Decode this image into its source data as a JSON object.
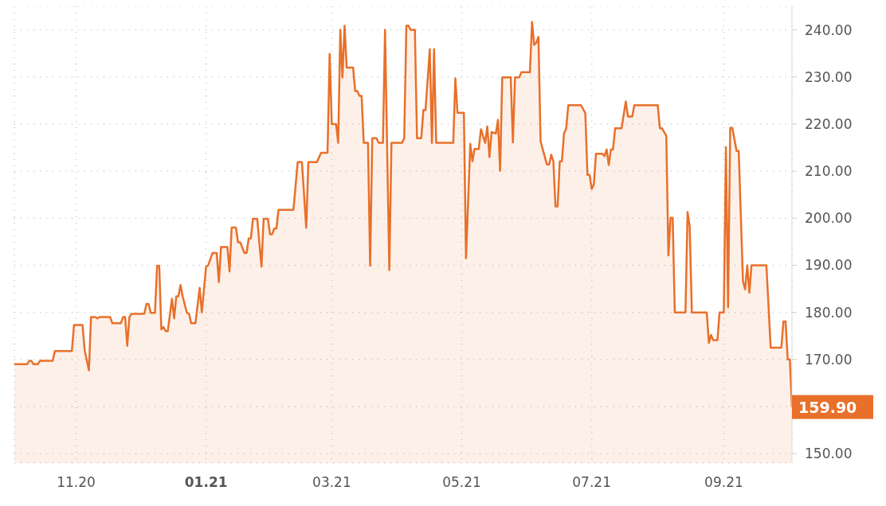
{
  "chart_data": {
    "type": "area",
    "x": [
      "2020-10-03",
      "2020-10-09",
      "2020-10-10",
      "2020-10-11",
      "2020-10-12",
      "2020-10-14",
      "2020-10-15",
      "2020-10-21",
      "2020-10-22",
      "2020-10-30",
      "2020-10-31",
      "2020-11-04",
      "2020-11-05",
      "2020-11-07",
      "2020-11-08",
      "2020-11-10",
      "2020-11-11",
      "2020-11-12",
      "2020-11-17",
      "2020-11-18",
      "2020-11-22",
      "2020-11-23",
      "2020-11-24",
      "2020-11-25",
      "2020-11-26",
      "2020-11-27",
      "2020-12-03",
      "2020-12-04",
      "2020-12-05",
      "2020-12-06",
      "2020-12-08",
      "2020-12-09",
      "2020-12-10",
      "2020-12-11",
      "2020-12-12",
      "2020-12-13",
      "2020-12-14",
      "2020-12-16",
      "2020-12-17",
      "2020-12-18",
      "2020-12-19",
      "2020-12-20",
      "2020-12-21",
      "2020-12-23",
      "2020-12-24",
      "2020-12-25",
      "2020-12-27",
      "2020-12-29",
      "2020-12-30",
      "2021-01-01",
      "2021-01-02",
      "2021-01-04",
      "2021-01-06",
      "2021-01-07",
      "2021-01-08",
      "2021-01-11",
      "2021-01-12",
      "2021-01-13",
      "2021-01-15",
      "2021-01-16",
      "2021-01-17",
      "2021-01-19",
      "2021-01-20",
      "2021-01-21",
      "2021-01-22",
      "2021-01-23",
      "2021-01-25",
      "2021-01-27",
      "2021-01-28",
      "2021-01-30",
      "2021-01-31",
      "2021-02-01",
      "2021-02-02",
      "2021-02-03",
      "2021-02-04",
      "2021-02-11",
      "2021-02-13",
      "2021-02-15",
      "2021-02-17",
      "2021-02-18",
      "2021-02-22",
      "2021-02-24",
      "2021-02-27",
      "2021-02-28",
      "2021-03-01",
      "2021-03-03",
      "2021-03-04",
      "2021-03-05",
      "2021-03-06",
      "2021-03-07",
      "2021-03-08",
      "2021-03-11",
      "2021-03-12",
      "2021-03-13",
      "2021-03-14",
      "2021-03-15",
      "2021-03-16",
      "2021-03-18",
      "2021-03-19",
      "2021-03-20",
      "2021-03-22",
      "2021-03-23",
      "2021-03-25",
      "2021-03-26",
      "2021-03-28",
      "2021-03-29",
      "2021-04-03",
      "2021-04-04",
      "2021-04-05",
      "2021-04-06",
      "2021-04-07",
      "2021-04-09",
      "2021-04-10",
      "2021-04-12",
      "2021-04-13",
      "2021-04-14",
      "2021-04-16",
      "2021-04-17",
      "2021-04-18",
      "2021-04-19",
      "2021-04-27",
      "2021-04-28",
      "2021-04-29",
      "2021-05-02",
      "2021-05-03",
      "2021-05-05",
      "2021-05-06",
      "2021-05-07",
      "2021-05-09",
      "2021-05-10",
      "2021-05-12",
      "2021-05-13",
      "2021-05-14",
      "2021-05-15",
      "2021-05-17",
      "2021-05-18",
      "2021-05-19",
      "2021-05-20",
      "2021-05-24",
      "2021-05-25",
      "2021-05-26",
      "2021-05-28",
      "2021-05-29",
      "2021-06-02",
      "2021-06-03",
      "2021-06-04",
      "2021-06-05",
      "2021-06-06",
      "2021-06-07",
      "2021-06-10",
      "2021-06-11",
      "2021-06-12",
      "2021-06-13",
      "2021-06-14",
      "2021-06-15",
      "2021-06-16",
      "2021-06-17",
      "2021-06-18",
      "2021-06-19",
      "2021-06-20",
      "2021-06-25",
      "2021-06-26",
      "2021-06-28",
      "2021-06-29",
      "2021-06-30",
      "2021-07-01",
      "2021-07-02",
      "2021-07-03",
      "2021-07-06",
      "2021-07-07",
      "2021-07-08",
      "2021-07-09",
      "2021-07-10",
      "2021-07-11",
      "2021-07-12",
      "2021-07-15",
      "2021-07-17",
      "2021-07-18",
      "2021-07-20",
      "2021-07-21",
      "2021-08-01",
      "2021-08-02",
      "2021-08-03",
      "2021-08-05",
      "2021-08-06",
      "2021-08-07",
      "2021-08-08",
      "2021-08-09",
      "2021-08-14",
      "2021-08-15",
      "2021-08-16",
      "2021-08-17",
      "2021-08-24",
      "2021-08-25",
      "2021-08-26",
      "2021-08-27",
      "2021-08-29",
      "2021-08-30",
      "2021-09-01",
      "2021-09-02",
      "2021-09-03",
      "2021-09-04",
      "2021-09-05",
      "2021-09-07",
      "2021-09-08",
      "2021-09-10",
      "2021-09-11",
      "2021-09-12",
      "2021-09-13",
      "2021-09-14",
      "2021-09-21",
      "2021-09-23",
      "2021-09-28",
      "2021-09-29",
      "2021-09-30",
      "2021-10-01",
      "2021-10-02",
      "2021-10-03"
    ],
    "series": [
      {
        "color": "#e8702a",
        "values": [
          169.0,
          169.0,
          169.7,
          169.7,
          169.0,
          169.0,
          169.7,
          169.7,
          171.8,
          171.8,
          177.3,
          177.3,
          172.0,
          167.7,
          179.0,
          179.0,
          178.7,
          179.0,
          179.0,
          177.7,
          177.7,
          179.0,
          179.0,
          172.9,
          179.0,
          179.7,
          179.7,
          181.8,
          181.8,
          179.9,
          179.9,
          189.9,
          189.9,
          176.4,
          176.9,
          176.0,
          176.0,
          182.9,
          178.7,
          183.4,
          183.4,
          185.8,
          183.4,
          179.9,
          179.7,
          177.7,
          177.7,
          185.2,
          180.0,
          189.7,
          190.0,
          192.6,
          192.6,
          186.4,
          193.9,
          193.9,
          188.7,
          198.0,
          198.0,
          194.9,
          194.9,
          192.6,
          192.6,
          195.7,
          195.7,
          199.9,
          199.9,
          189.7,
          199.9,
          199.9,
          196.6,
          196.6,
          197.8,
          197.8,
          201.8,
          201.8,
          211.9,
          211.9,
          198.0,
          211.9,
          211.9,
          213.9,
          213.9,
          234.9,
          220.0,
          220.0,
          216.0,
          240.0,
          229.9,
          240.9,
          232.0,
          232.0,
          227.0,
          227.0,
          226.0,
          226.0,
          216.0,
          216.0,
          189.9,
          217.0,
          217.0,
          216.0,
          216.0,
          240.0,
          189.0,
          216.0,
          216.0,
          217.0,
          240.9,
          240.9,
          240.0,
          240.0,
          217.0,
          217.0,
          223.0,
          223.0,
          235.9,
          216.0,
          235.9,
          216.0,
          216.0,
          229.7,
          222.4,
          222.4,
          191.5,
          215.8,
          212.1,
          214.7,
          214.7,
          218.9,
          216.0,
          219.5,
          213.0,
          218.3,
          218.0,
          220.9,
          210.1,
          229.9,
          229.9,
          216.1,
          229.9,
          229.9,
          231.0,
          231.0,
          241.7,
          236.8,
          237.3,
          238.5,
          216.3,
          211.4,
          211.4,
          213.5,
          212.1,
          202.5,
          202.5,
          212.1,
          212.1,
          218.0,
          219.0,
          224.0,
          224.0,
          224.0,
          222.3,
          209.2,
          209.2,
          206.2,
          207.2,
          213.7,
          213.7,
          213.2,
          214.6,
          211.3,
          214.6,
          214.6,
          219.1,
          219.1,
          224.8,
          221.6,
          221.6,
          224.0,
          224.0,
          219.1,
          219.1,
          217.5,
          192.1,
          200.1,
          200.1,
          180.0,
          180.0,
          201.3,
          198.2,
          180.0,
          180.0,
          173.5,
          175.2,
          174.1,
          174.1,
          180.0,
          180.0,
          215.1,
          181.1,
          219.2,
          219.2,
          214.3,
          214.3,
          186.6,
          184.9,
          190.0,
          184.2,
          190.0,
          190.0,
          172.5,
          172.5,
          178.1,
          178.1,
          170.0,
          170.0,
          159.9
        ]
      }
    ],
    "xlim": [
      "2020-10-03",
      "2021-10-03"
    ],
    "xticks": [
      {
        "value": "2020-11-01",
        "label": "11.20"
      },
      {
        "value": "2021-01-01",
        "label": "01.21"
      },
      {
        "value": "2021-03-01",
        "label": "03.21"
      },
      {
        "value": "2021-05-01",
        "label": "05.21"
      },
      {
        "value": "2021-07-01",
        "label": "07.21"
      },
      {
        "value": "2021-09-01",
        "label": "09.21"
      }
    ],
    "ylim": [
      148,
      245
    ],
    "yticks": [
      {
        "value": 150,
        "label": "150.00"
      },
      {
        "value": 160,
        "label": null
      },
      {
        "value": 170,
        "label": "170.00"
      },
      {
        "value": 180,
        "label": "180.00"
      },
      {
        "value": 190,
        "label": "190.00"
      },
      {
        "value": 200,
        "label": "200.00"
      },
      {
        "value": 210,
        "label": "210.00"
      },
      {
        "value": 220,
        "label": "220.00"
      },
      {
        "value": 230,
        "label": "230.00"
      },
      {
        "value": 240,
        "label": "240.00"
      }
    ],
    "annotations": [
      {
        "text": "159.90",
        "x": "2021-10-03",
        "y": 159.9
      }
    ],
    "grid": true,
    "legend": false
  }
}
